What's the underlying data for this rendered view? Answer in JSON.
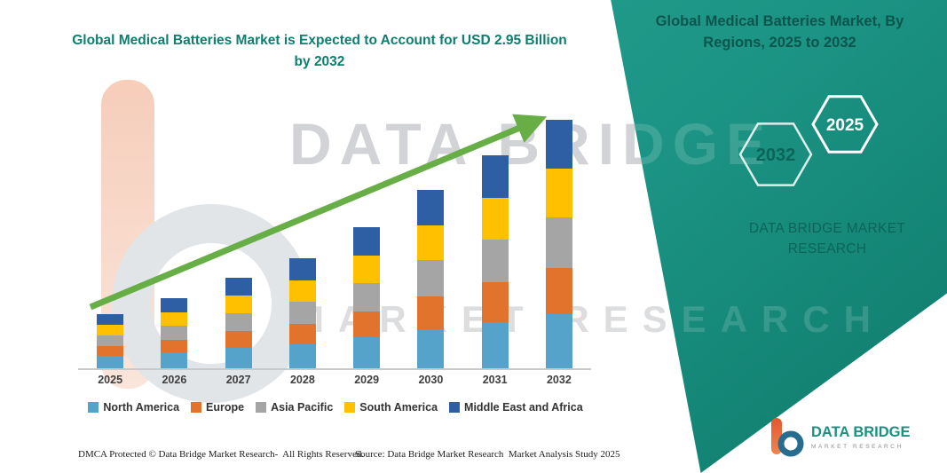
{
  "banner": {
    "title": "Global Medical Batteries Market, By Regions, 2025 to 2032",
    "hexagons": {
      "back": "2032",
      "front": "2025"
    },
    "brand": "DATA BRIDGE MARKET RESEARCH",
    "teal_color": "#1E9C8B"
  },
  "watermark": {
    "line1": "DATA BRIDGE",
    "line2": "MARKET RESEARCH"
  },
  "footer": {
    "dmca": "DMCA Protected © Data Bridge Market Research-  All Rights Reserved.",
    "source": "Source: Data Bridge Market Research  Market Analysis Study 2025"
  },
  "logo": {
    "name": "DATA BRIDGE",
    "tagline": "MARKET RESEARCH"
  },
  "chart_data": {
    "type": "bar",
    "stacked": true,
    "title": "Global Medical Batteries Market is Expected to Account for USD 2.95 Billion by 2032",
    "categories": [
      "2025",
      "2026",
      "2027",
      "2028",
      "2029",
      "2030",
      "2031",
      "2032"
    ],
    "series": [
      {
        "name": "North America",
        "color": "#55A3CB",
        "values": [
          0.15,
          0.19,
          0.24,
          0.28,
          0.37,
          0.46,
          0.55,
          0.64
        ]
      },
      {
        "name": "Europe",
        "color": "#E2732C",
        "values": [
          0.12,
          0.15,
          0.2,
          0.24,
          0.31,
          0.39,
          0.47,
          0.55
        ]
      },
      {
        "name": "Asia Pacific",
        "color": "#A5A5A5",
        "values": [
          0.13,
          0.17,
          0.21,
          0.26,
          0.34,
          0.43,
          0.51,
          0.6
        ]
      },
      {
        "name": "South America",
        "color": "#FFC000",
        "values": [
          0.13,
          0.16,
          0.21,
          0.25,
          0.33,
          0.41,
          0.49,
          0.58
        ]
      },
      {
        "name": "Middle East and Africa",
        "color": "#2E5FA5",
        "values": [
          0.13,
          0.17,
          0.21,
          0.26,
          0.34,
          0.42,
          0.51,
          0.58
        ]
      }
    ],
    "units": "USD Billion (values estimated from bar heights; 2032 total = 2.95)",
    "ylim": [
      0,
      3.0
    ],
    "grid": false,
    "legend_position": "bottom",
    "annotations": [
      {
        "type": "trend-arrow",
        "direction": "up",
        "color": "#66AE45"
      }
    ]
  }
}
